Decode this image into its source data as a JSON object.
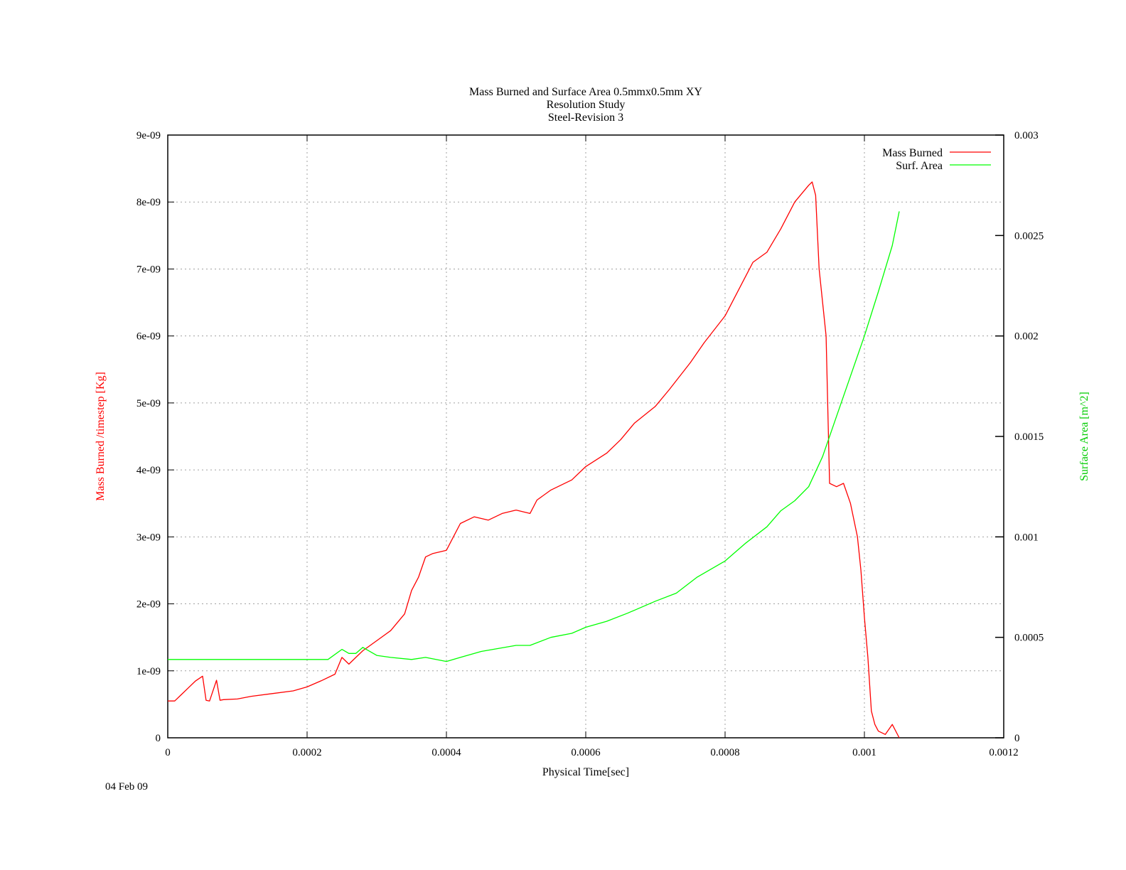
{
  "chart_data": {
    "type": "line",
    "title": [
      "Mass Burned and Surface Area 0.5mmx0.5mm XY",
      "Resolution Study",
      "Steel-Revision 3"
    ],
    "xlabel": "Physical Time[sec]",
    "ylabel": "Mass Burned /timestep  [Kg]",
    "y2label": "Surface Area [m^2]",
    "date_label": "04 Feb 09",
    "xlim": [
      0,
      0.0012
    ],
    "ylim": [
      0,
      9e-09
    ],
    "y2lim": [
      0,
      0.003
    ],
    "x_ticks": [
      "0",
      "0.0002",
      "0.0004",
      "0.0006",
      "0.0008",
      "0.001",
      "0.0012"
    ],
    "x_tick_values": [
      0,
      0.0002,
      0.0004,
      0.0006,
      0.0008,
      0.001,
      0.0012
    ],
    "y_ticks": [
      "0",
      "1e-09",
      "2e-09",
      "3e-09",
      "4e-09",
      "5e-09",
      "6e-09",
      "7e-09",
      "8e-09",
      "9e-09"
    ],
    "y_tick_values": [
      0,
      1e-09,
      2e-09,
      3e-09,
      4e-09,
      5e-09,
      6e-09,
      7e-09,
      8e-09,
      9e-09
    ],
    "y2_ticks": [
      "0",
      "0.0005",
      "0.001",
      "0.0015",
      "0.002",
      "0.0025",
      "0.003"
    ],
    "y2_tick_values": [
      0,
      0.0005,
      0.001,
      0.0015,
      0.002,
      0.0025,
      0.003
    ],
    "grid": true,
    "legend_position": "top-right",
    "series": [
      {
        "name": "Mass Burned",
        "axis": "left",
        "color": "#ff0000",
        "x": [
          0,
          1e-05,
          3e-05,
          4e-05,
          5e-05,
          5.5e-05,
          6e-05,
          7e-05,
          7.5e-05,
          8e-05,
          0.0001,
          0.00012,
          0.00015,
          0.00018,
          0.0002,
          0.00022,
          0.00024,
          0.00025,
          0.00026,
          0.00027,
          0.00028,
          0.0003,
          0.00032,
          0.00034,
          0.00035,
          0.00036,
          0.00037,
          0.00038,
          0.0004,
          0.00041,
          0.00042,
          0.00044,
          0.00046,
          0.00048,
          0.0005,
          0.00052,
          0.00053,
          0.00055,
          0.00058,
          0.0006,
          0.00063,
          0.00065,
          0.00067,
          0.0007,
          0.00072,
          0.00075,
          0.00077,
          0.0008,
          0.00082,
          0.00084,
          0.00086,
          0.00088,
          0.0009,
          0.00092,
          0.000925,
          0.00093,
          0.000935,
          0.000945,
          0.00095,
          0.00096,
          0.00097,
          0.00098,
          0.00099,
          0.000995,
          0.001,
          0.001005,
          0.00101,
          0.001015,
          0.00102,
          0.00103,
          0.00104,
          0.00105
        ],
        "values": [
          5.5e-10,
          5.5e-10,
          7.5e-10,
          8.5e-10,
          9.2e-10,
          5.6e-10,
          5.5e-10,
          8.6e-10,
          5.6e-10,
          5.7e-10,
          5.8e-10,
          6.2e-10,
          6.6e-10,
          7e-10,
          7.6e-10,
          8.5e-10,
          9.5e-10,
          1.2e-09,
          1.1e-09,
          1.2e-09,
          1.3e-09,
          1.45e-09,
          1.6e-09,
          1.85e-09,
          2.2e-09,
          2.4e-09,
          2.7e-09,
          2.75e-09,
          2.8e-09,
          3e-09,
          3.2e-09,
          3.3e-09,
          3.25e-09,
          3.35e-09,
          3.4e-09,
          3.35e-09,
          3.55e-09,
          3.7e-09,
          3.85e-09,
          4.05e-09,
          4.25e-09,
          4.45e-09,
          4.7e-09,
          4.95e-09,
          5.2e-09,
          5.6e-09,
          5.9e-09,
          6.3e-09,
          6.7e-09,
          7.1e-09,
          7.25e-09,
          7.6e-09,
          8e-09,
          8.25e-09,
          8.3e-09,
          8.1e-09,
          7e-09,
          6e-09,
          3.8e-09,
          3.75e-09,
          3.8e-09,
          3.5e-09,
          3e-09,
          2.5e-09,
          1.8e-09,
          1.2e-09,
          4e-10,
          2e-10,
          1e-10,
          5e-11,
          2e-10,
          0
        ]
      },
      {
        "name": "Surf. Area",
        "axis": "right",
        "color": "#00ff00",
        "x": [
          0,
          1e-05,
          0.0001,
          0.0002,
          0.00023,
          0.00025,
          0.00026,
          0.00027,
          0.00028,
          0.0003,
          0.00032,
          0.00035,
          0.00037,
          0.0004,
          0.00042,
          0.00045,
          0.0005,
          0.00052,
          0.00055,
          0.00058,
          0.0006,
          0.00063,
          0.00066,
          0.0007,
          0.00073,
          0.00076,
          0.0008,
          0.00083,
          0.00086,
          0.00088,
          0.0009,
          0.00092,
          0.00094,
          0.00096,
          0.00098,
          0.001,
          0.00102,
          0.00104,
          0.00105
        ],
        "values": [
          0.00039,
          0.00039,
          0.00039,
          0.00039,
          0.00039,
          0.00044,
          0.00042,
          0.00042,
          0.00045,
          0.00041,
          0.0004,
          0.00039,
          0.0004,
          0.00038,
          0.0004,
          0.00043,
          0.00046,
          0.00046,
          0.0005,
          0.00052,
          0.00055,
          0.00058,
          0.00062,
          0.00068,
          0.00072,
          0.0008,
          0.00088,
          0.00097,
          0.00105,
          0.00113,
          0.00118,
          0.00125,
          0.0014,
          0.0016,
          0.0018,
          0.002,
          0.00222,
          0.00245,
          0.00262
        ]
      }
    ]
  }
}
